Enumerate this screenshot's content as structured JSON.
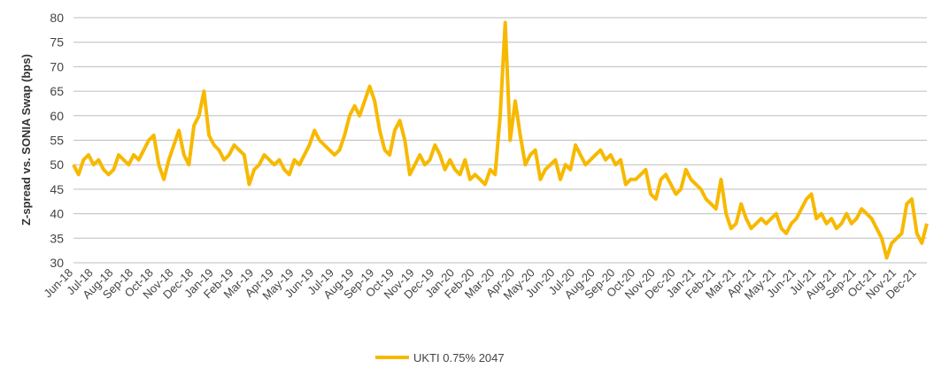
{
  "chart_data": {
    "type": "line",
    "y_label": "Z-spread vs. SONIA Swap (bps)",
    "categories": [
      "Jun-18",
      null,
      null,
      null,
      "Jul-18",
      null,
      null,
      null,
      "Aug-18",
      null,
      null,
      null,
      "Sep-18",
      null,
      null,
      null,
      "Oct-18",
      null,
      null,
      null,
      "Nov-18",
      null,
      null,
      null,
      "Dec-18",
      null,
      null,
      null,
      "Jan-19",
      null,
      null,
      null,
      "Feb-19",
      null,
      null,
      null,
      "Mar-19",
      null,
      null,
      null,
      "Apr-19",
      null,
      null,
      null,
      "May-19",
      null,
      null,
      null,
      "Jun-19",
      null,
      null,
      null,
      "Jul-19",
      null,
      null,
      null,
      "Aug-19",
      null,
      null,
      null,
      "Sep-19",
      null,
      null,
      null,
      "Oct-19",
      null,
      null,
      null,
      "Nov-19",
      null,
      null,
      null,
      "Dec-19",
      null,
      null,
      null,
      "Jan-20",
      null,
      null,
      null,
      "Feb-20",
      null,
      null,
      null,
      "Mar-20",
      null,
      null,
      null,
      "Apr-20",
      null,
      null,
      null,
      "May-20",
      null,
      null,
      null,
      "Jun-20",
      null,
      null,
      null,
      "Jul-20",
      null,
      null,
      null,
      "Aug-20",
      null,
      null,
      null,
      "Sep-20",
      null,
      null,
      null,
      "Oct-20",
      null,
      null,
      null,
      "Nov-20",
      null,
      null,
      null,
      "Dec-20",
      null,
      null,
      null,
      "Jan-21",
      null,
      null,
      null,
      "Feb-21",
      null,
      null,
      null,
      "Mar-21",
      null,
      null,
      null,
      "Apr-21",
      null,
      null,
      null,
      "May-21",
      null,
      null,
      null,
      "Jun-21",
      null,
      null,
      null,
      "Jul-21",
      null,
      null,
      null,
      "Aug-21",
      null,
      null,
      null,
      "Sep-21",
      null,
      null,
      null,
      "Oct-21",
      null,
      null,
      null,
      "Nov-21",
      null,
      null,
      null,
      "Dec-21",
      null,
      null
    ],
    "series": [
      {
        "name": "UKTI 0.75% 2047",
        "color": "#f7b900",
        "values": [
          50,
          48,
          51,
          52,
          50,
          51,
          49,
          48,
          49,
          52,
          51,
          50,
          52,
          51,
          53,
          55,
          56,
          50,
          47,
          51,
          54,
          57,
          52,
          50,
          58,
          60,
          65,
          56,
          54,
          53,
          51,
          52,
          54,
          53,
          52,
          46,
          49,
          50,
          52,
          51,
          50,
          51,
          49,
          48,
          51,
          50,
          52,
          54,
          57,
          55,
          54,
          53,
          52,
          53,
          56,
          60,
          62,
          60,
          63,
          66,
          63,
          57,
          53,
          52,
          57,
          59,
          55,
          48,
          50,
          52,
          50,
          51,
          54,
          52,
          49,
          51,
          49,
          48,
          51,
          47,
          48,
          47,
          46,
          49,
          48,
          60,
          79,
          55,
          63,
          56,
          50,
          52,
          53,
          47,
          49,
          50,
          51,
          47,
          50,
          49,
          54,
          52,
          50,
          51,
          52,
          53,
          51,
          52,
          50,
          51,
          46,
          47,
          47,
          48,
          49,
          44,
          43,
          47,
          48,
          46,
          44,
          45,
          49,
          47,
          46,
          45,
          43,
          42,
          41,
          47,
          40,
          37,
          38,
          42,
          39,
          37,
          38,
          39,
          38,
          39,
          40,
          37,
          36,
          38,
          39,
          41,
          43,
          44,
          39,
          40,
          38,
          39,
          37,
          38,
          40,
          38,
          39,
          41,
          40,
          39,
          37,
          35,
          31,
          34,
          35,
          36,
          42,
          43,
          36,
          34,
          38
        ]
      }
    ],
    "ylim": [
      30,
      80
    ],
    "yticks": [
      30,
      35,
      40,
      45,
      50,
      55,
      60,
      65,
      70,
      75,
      80
    ],
    "grid": true,
    "legend": "bottom"
  }
}
